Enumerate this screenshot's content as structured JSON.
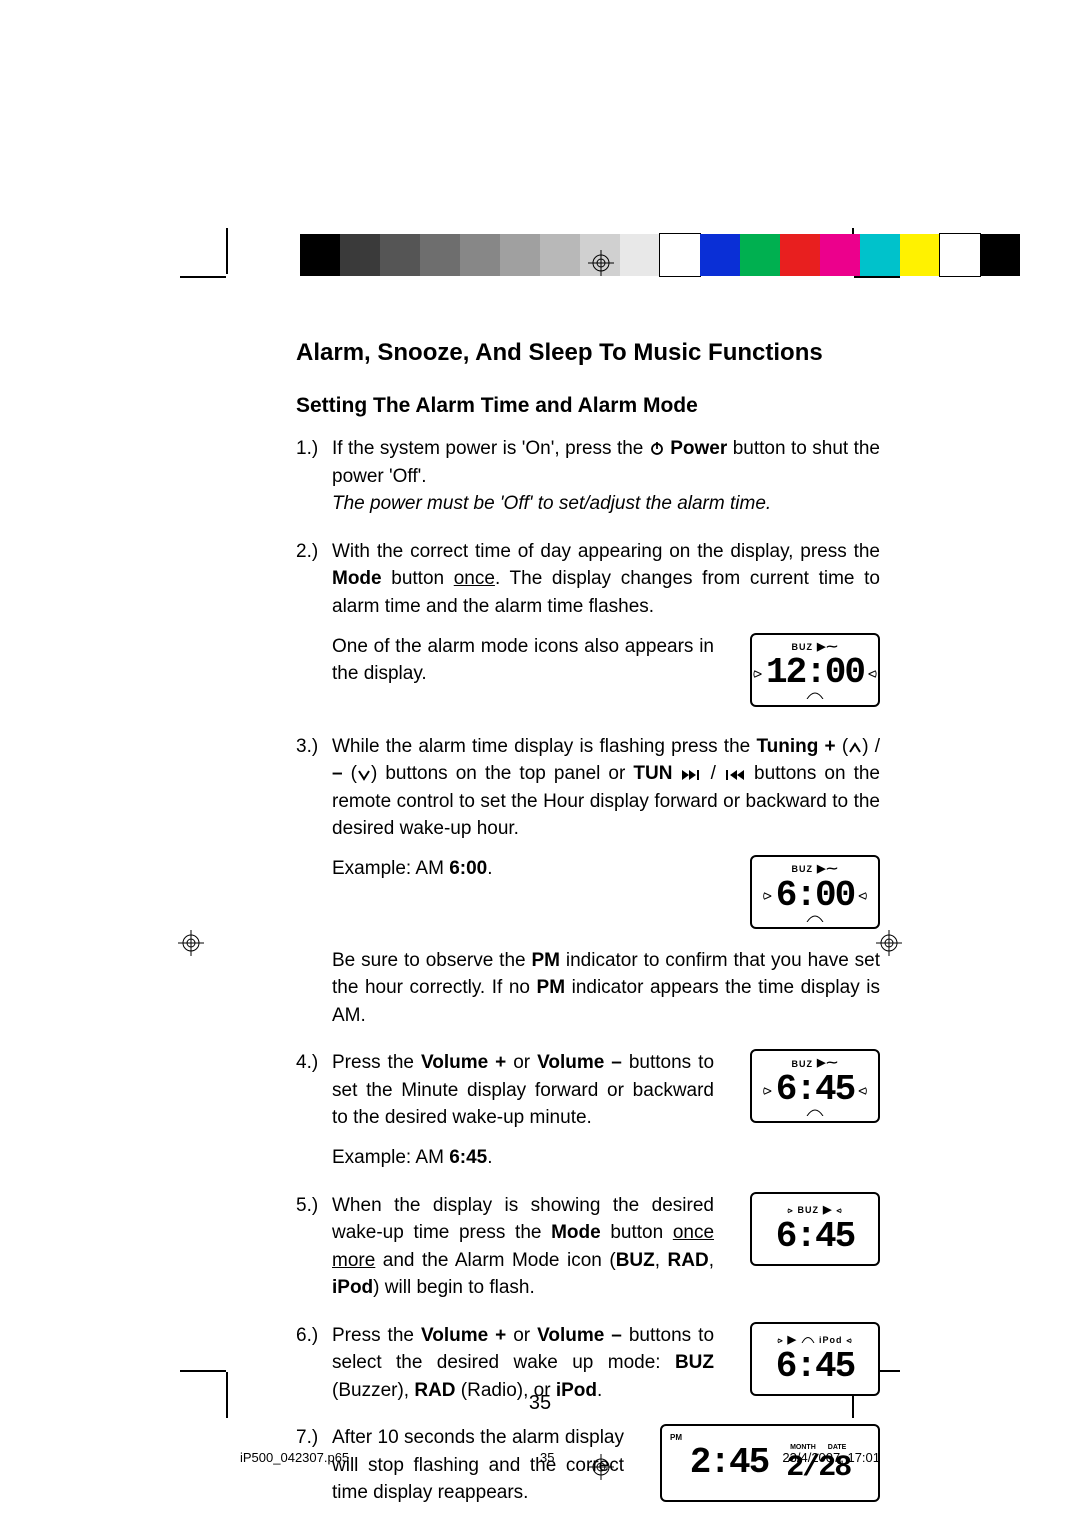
{
  "strip_colors": [
    "#000000",
    "#3a3a3a",
    "#555555",
    "#6e6e6e",
    "#878787",
    "#a0a0a0",
    "#b8b8b8",
    "#d0d0d0",
    "#e8e8e8",
    "#ffffff",
    "#0a2fd6",
    "#00b050",
    "#e81f1f",
    "#ec008c",
    "#00c2cb",
    "#fff200",
    "#ffffff",
    "#000000"
  ],
  "title": "Alarm, Snooze, And Sleep To Music Functions",
  "subtitle": "Setting The Alarm Time and Alarm Mode",
  "steps": {
    "1": {
      "num": "1.)",
      "a": "If the system power is 'On', press the ",
      "b": " Power",
      "c": " button to shut the power 'Off'.",
      "italic": "The power must be 'Off' to set/adjust the alarm time."
    },
    "2": {
      "num": "2.)",
      "a": "With the correct time of day appearing on the display, press the ",
      "b": "Mode",
      "c": " button ",
      "d": "once",
      "e": ". The display changes from current time to alarm time and the alarm time flashes.",
      "note": "One of the alarm mode icons also appears in the display."
    },
    "3": {
      "num": "3.)",
      "a": "While the alarm time display is flashing press the ",
      "b": "Tuning +",
      "c": " (",
      "d": ") / ",
      "e": "–",
      "f": " (",
      "g": ") buttons on the top panel or ",
      "h": "TUN",
      "i": " / ",
      "j": " buttons on the remote control to set the Hour display forward or backward to the desired wake-up hour.",
      "ex_lbl": "Example: AM ",
      "ex_val": "6:00",
      "ex_dot": ".",
      "pm1": "Be sure to observe the ",
      "pm2": "PM",
      "pm3": " indicator to confirm that you have set the hour correctly. If no ",
      "pm4": "PM",
      "pm5": " indicator appears the time display is AM."
    },
    "4": {
      "num": "4.)",
      "a": "Press the ",
      "b": "Volume +",
      "c": " or ",
      "d": "Volume –",
      "e": " buttons to set the Minute display forward or backward to the desired wake-up minute.",
      "ex_lbl": "Example: AM ",
      "ex_val": "6:45",
      "ex_dot": "."
    },
    "5": {
      "num": "5.)",
      "a": "When the display is showing the desired wake-up time press the ",
      "b": "Mode",
      "c": " button ",
      "d": "once more",
      "e": " and the Alarm Mode icon (",
      "f": "BUZ",
      "g": ", ",
      "h": "RAD",
      "i": ", ",
      "j": "iPod",
      "k": ") will begin to flash."
    },
    "6": {
      "num": "6.)",
      "a": "Press the ",
      "b": "Volume +",
      "c": " or ",
      "d": "Volume –",
      "e": " buttons to select the desired wake up mode: ",
      "f": "BUZ",
      "g": " (Buzzer), ",
      "h": "RAD",
      "i": " (Radio), or ",
      "j": "iPod",
      "k": "."
    },
    "7": {
      "num": "7.)",
      "a": "After 10 seconds the alarm display will stop flashing and the correct time display reappears."
    }
  },
  "lcd": {
    "buz": "BUZ",
    "d1": "12:00",
    "d2": "6:00",
    "d3": "6:45",
    "d4": "6:45",
    "d5": "6:45",
    "d6_time": "2:45",
    "d6_date": "2/28",
    "pm": "PM",
    "month": "MONTH",
    "date": "DATE",
    "ipod": "iPod"
  },
  "page_number": "35",
  "footer": {
    "file": "iP500_042307.p65",
    "pg": "35",
    "ts": "23/4/2007, 17:01"
  }
}
